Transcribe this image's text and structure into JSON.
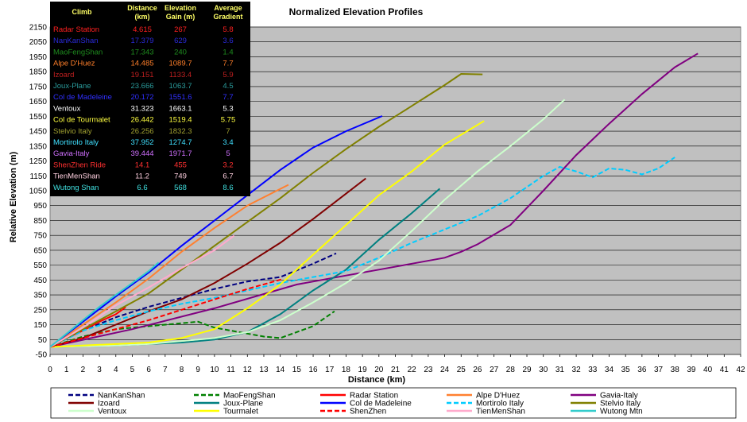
{
  "chart_data": {
    "type": "line",
    "title": "Normalized Elevation Profiles",
    "xlabel": "Distance (km)",
    "ylabel": "Relative Elevation (m)",
    "xlim": [
      0,
      42
    ],
    "ylim": [
      -50,
      2150
    ],
    "x_ticks": [
      "0",
      "1",
      "2",
      "3",
      "4",
      "5",
      "6",
      "7",
      "8",
      "9",
      "10",
      "11",
      "12",
      "13",
      "14",
      "15",
      "16",
      "17",
      "18",
      "19",
      "20",
      "21",
      "22",
      "23",
      "24",
      "25",
      "26",
      "27",
      "28",
      "29",
      "30",
      "31",
      "32",
      "33",
      "34",
      "35",
      "36",
      "37",
      "38",
      "39",
      "40",
      "41",
      "42"
    ],
    "y_ticks": [
      "2150",
      "2050",
      "1950",
      "1850",
      "1750",
      "1650",
      "1550",
      "1450",
      "1350",
      "1250",
      "1150",
      "1050",
      "950",
      "850",
      "750",
      "650",
      "550",
      "450",
      "350",
      "250",
      "150",
      "50",
      "-50"
    ],
    "plot_background": "#c0c0c0",
    "grid": true,
    "table": {
      "headers": [
        "Climb",
        "Distance (km)",
        "Elevation Gain (m)",
        "Average Gradient"
      ],
      "rows": [
        {
          "name": "Radar Station",
          "distance": "4.615",
          "gain": "267",
          "gradient": "5.8",
          "color": "#ff2020"
        },
        {
          "name": "NanKanShan",
          "distance": "17.379",
          "gain": "629",
          "gradient": "3.6",
          "color": "#2a2ad8"
        },
        {
          "name": "MaoFengShan",
          "distance": "17.343",
          "gain": "240",
          "gradient": "1.4",
          "color": "#1e8c1e"
        },
        {
          "name": "Alpe D'Huez",
          "distance": "14.485",
          "gain": "1089.7",
          "gradient": "7.7",
          "color": "#ff7f2a"
        },
        {
          "name": "Izoard",
          "distance": "19.151",
          "gain": "1133.4",
          "gradient": "5.9",
          "color": "#c02020"
        },
        {
          "name": "Joux-Plane",
          "distance": "23.666",
          "gain": "1063.7",
          "gradient": "4.5",
          "color": "#2a9a9a"
        },
        {
          "name": "Col de Madeleine",
          "distance": "20.172",
          "gain": "1551.6",
          "gradient": "7.7",
          "color": "#3030ff"
        },
        {
          "name": "Ventoux",
          "distance": "31.323",
          "gain": "1663.1",
          "gradient": "5.3",
          "color": "#ffffff"
        },
        {
          "name": "Col de Tourmalet",
          "distance": "26.442",
          "gain": "1519.4",
          "gradient": "5.75",
          "color": "#ffff40"
        },
        {
          "name": "Stelvio Italy",
          "distance": "26.256",
          "gain": "1832.3",
          "gradient": "7",
          "color": "#a0a030"
        },
        {
          "name": "Mortirolo Italy",
          "distance": "37.952",
          "gain": "1274.7",
          "gradient": "3.4",
          "color": "#40e0ff"
        },
        {
          "name": "Gavia-Italy",
          "distance": "39.444",
          "gain": "1971.7",
          "gradient": "5",
          "color": "#d070ff"
        },
        {
          "name": "ShenZhen Ride",
          "distance": "14.1",
          "gain": "455",
          "gradient": "3.2",
          "color": "#ff3030"
        },
        {
          "name": "TienMenShan",
          "distance": "11.2",
          "gain": "749",
          "gradient": "6.7",
          "color": "#ffd0e0"
        },
        {
          "name": "Wutong Shan",
          "distance": "6.6",
          "gain": "568",
          "gradient": "8.6",
          "color": "#40e0e0"
        }
      ]
    },
    "series": [
      {
        "name": "NanKanShan",
        "color": "#000080",
        "dash": "dash",
        "x": [
          0,
          2,
          4,
          6,
          8,
          10,
          12,
          14,
          16,
          17.4
        ],
        "y": [
          0,
          110,
          200,
          270,
          330,
          390,
          440,
          470,
          560,
          629
        ]
      },
      {
        "name": "MaoFengShan",
        "color": "#008000",
        "dash": "dash",
        "x": [
          0,
          2,
          4,
          6,
          8,
          9,
          10,
          12,
          13,
          14,
          16,
          17.3
        ],
        "y": [
          0,
          70,
          120,
          140,
          160,
          170,
          130,
          90,
          70,
          60,
          140,
          240
        ]
      },
      {
        "name": "Radar Station",
        "color": "#ff0000",
        "dash": "solid",
        "x": [
          0,
          1,
          2,
          3,
          4,
          4.6
        ],
        "y": [
          0,
          60,
          110,
          170,
          220,
          267
        ]
      },
      {
        "name": "Alpe D'Huez",
        "color": "#ff8030",
        "dash": "solid",
        "x": [
          0,
          2,
          4,
          6,
          8,
          10,
          12,
          14.5
        ],
        "y": [
          0,
          150,
          300,
          460,
          640,
          800,
          950,
          1090
        ]
      },
      {
        "name": "Gavia-Italy",
        "color": "#800080",
        "dash": "solid",
        "x": [
          0,
          5,
          10,
          15,
          18,
          20,
          22,
          24,
          25,
          26,
          28,
          30,
          32,
          34,
          36,
          38,
          39.4
        ],
        "y": [
          0,
          120,
          260,
          420,
          480,
          520,
          560,
          600,
          640,
          690,
          820,
          1050,
          1290,
          1500,
          1700,
          1880,
          1972
        ]
      },
      {
        "name": "Izoard",
        "color": "#800000",
        "dash": "solid",
        "x": [
          0,
          2,
          4,
          6,
          8,
          10,
          12,
          14,
          16,
          18,
          19.2
        ],
        "y": [
          0,
          60,
          150,
          240,
          320,
          430,
          560,
          700,
          860,
          1030,
          1133
        ]
      },
      {
        "name": "Joux-Plane",
        "color": "#008080",
        "dash": "solid",
        "x": [
          0,
          4,
          6,
          8,
          10,
          12,
          14,
          16,
          18,
          20,
          22,
          23.7
        ],
        "y": [
          0,
          10,
          20,
          30,
          50,
          100,
          220,
          380,
          520,
          720,
          900,
          1064
        ]
      },
      {
        "name": "Col de Madeleine",
        "color": "#0000ff",
        "dash": "solid",
        "x": [
          0,
          2,
          4,
          6,
          8,
          10,
          12,
          14,
          16,
          18,
          20.2
        ],
        "y": [
          0,
          170,
          340,
          500,
          680,
          850,
          1020,
          1190,
          1340,
          1450,
          1552
        ]
      },
      {
        "name": "Mortirolo Italy",
        "color": "#00ccff",
        "dash": "dash",
        "x": [
          0,
          2,
          4,
          6,
          8,
          10,
          12,
          14,
          16,
          18,
          20,
          22,
          24,
          26,
          28,
          30,
          31,
          32,
          33,
          34,
          35,
          36,
          37,
          38
        ],
        "y": [
          0,
          110,
          180,
          240,
          290,
          330,
          380,
          430,
          470,
          510,
          600,
          700,
          790,
          880,
          1000,
          1150,
          1210,
          1180,
          1140,
          1200,
          1190,
          1160,
          1200,
          1275
        ]
      },
      {
        "name": "Stelvio Italy",
        "color": "#808000",
        "dash": "solid",
        "x": [
          0,
          2,
          4,
          6,
          8,
          10,
          12,
          14,
          16,
          18,
          20,
          22,
          24,
          25,
          26.3
        ],
        "y": [
          0,
          120,
          240,
          360,
          520,
          680,
          840,
          1000,
          1170,
          1330,
          1480,
          1620,
          1760,
          1835,
          1832
        ]
      },
      {
        "name": "Ventoux",
        "color": "#ccffcc",
        "dash": "solid",
        "x": [
          0,
          4,
          6,
          8,
          10,
          12,
          14,
          16,
          18,
          20,
          22,
          24,
          26,
          28,
          30,
          31.3
        ],
        "y": [
          0,
          10,
          20,
          40,
          60,
          100,
          180,
          300,
          430,
          580,
          780,
          990,
          1180,
          1350,
          1530,
          1663
        ]
      },
      {
        "name": "Tourmalet",
        "color": "#ffff00",
        "dash": "solid",
        "x": [
          0,
          6,
          8,
          10,
          12,
          14,
          16,
          18,
          20,
          22,
          24,
          26.4
        ],
        "y": [
          0,
          30,
          60,
          120,
          260,
          420,
          620,
          820,
          1020,
          1180,
          1360,
          1519
        ]
      },
      {
        "name": "ShenZhen",
        "color": "#ff0000",
        "dash": "dash",
        "x": [
          0,
          2,
          4,
          6,
          8,
          10,
          12,
          14.1
        ],
        "y": [
          0,
          60,
          120,
          180,
          250,
          320,
          390,
          455
        ]
      },
      {
        "name": "TienMenShan",
        "color": "#ffaacc",
        "dash": "solid",
        "x": [
          0,
          2,
          4,
          6,
          8,
          10,
          11.2
        ],
        "y": [
          0,
          130,
          280,
          400,
          530,
          650,
          749
        ]
      },
      {
        "name": "Wutong Mtn",
        "color": "#33cccc",
        "dash": "solid",
        "x": [
          0,
          1,
          2,
          3,
          4,
          5,
          6,
          6.6
        ],
        "y": [
          0,
          90,
          180,
          270,
          350,
          430,
          510,
          568
        ]
      }
    ],
    "legend": {
      "position": "bottom",
      "items": [
        "NanKanShan",
        "MaoFengShan",
        "Radar Station",
        "Alpe D'Huez",
        "Gavia-Italy",
        "Izoard",
        "Joux-Plane",
        "Col de Madeleine",
        "Mortirolo Italy",
        "Stelvio Italy",
        "Ventoux",
        "Tourmalet",
        "ShenZhen",
        "TienMenShan",
        "Wutong Mtn"
      ]
    }
  }
}
